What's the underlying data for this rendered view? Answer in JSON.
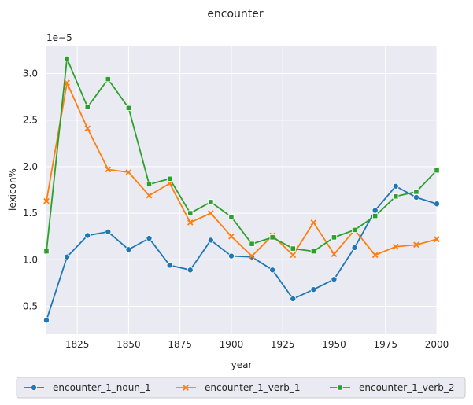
{
  "chart_data": {
    "type": "line",
    "title": "encounter",
    "xlabel": "year",
    "ylabel": "lexicon%",
    "y_multiplier_label": "1e−5",
    "xlim": [
      1810,
      2000
    ],
    "ylim": [
      0.2,
      3.3
    ],
    "x_ticks": [
      1825,
      1850,
      1875,
      1900,
      1925,
      1950,
      1975,
      2000
    ],
    "y_ticks": [
      0.5,
      1.0,
      1.5,
      2.0,
      2.5,
      3.0
    ],
    "grid": true,
    "background": "#eaeaf2",
    "legend_placement": "bottom-outside",
    "x": [
      1810,
      1820,
      1830,
      1840,
      1850,
      1860,
      1870,
      1880,
      1890,
      1900,
      1910,
      1920,
      1930,
      1940,
      1950,
      1960,
      1970,
      1980,
      1990,
      2000
    ],
    "series": [
      {
        "name": "encounter_1_noun_1",
        "color": "#1f77b4",
        "marker": "circle",
        "values": [
          0.35,
          1.03,
          1.26,
          1.3,
          1.11,
          1.23,
          0.94,
          0.89,
          1.21,
          1.04,
          1.03,
          0.89,
          0.58,
          0.68,
          0.79,
          1.13,
          1.53,
          1.79,
          1.67,
          1.6
        ]
      },
      {
        "name": "encounter_1_verb_1",
        "color": "#ff7f0e",
        "marker": "x",
        "values": [
          1.63,
          2.9,
          2.41,
          1.97,
          1.94,
          1.69,
          1.82,
          1.4,
          1.5,
          1.25,
          1.04,
          1.26,
          1.05,
          1.4,
          1.06,
          1.32,
          1.05,
          1.14,
          1.16,
          1.22
        ]
      },
      {
        "name": "encounter_1_verb_2",
        "color": "#2ca02c",
        "marker": "square",
        "values": [
          1.09,
          3.16,
          2.64,
          2.94,
          2.63,
          1.81,
          1.87,
          1.5,
          1.62,
          1.46,
          1.17,
          1.24,
          1.12,
          1.09,
          1.24,
          1.32,
          1.47,
          1.68,
          1.73,
          1.96
        ]
      }
    ]
  }
}
